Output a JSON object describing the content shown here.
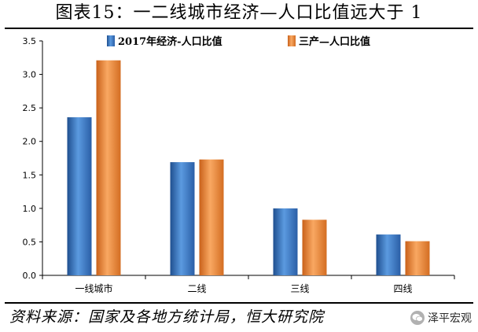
{
  "title": "图表15：一二线城市经济—人口比值远大于 1",
  "source": "资料来源：国家及各地方统计局，恒大研究院",
  "watermark": {
    "icon": "wechat-icon",
    "text": "泽平宏观"
  },
  "colors": {
    "series_1": "#3d7cc9",
    "series_2": "#f08a3c"
  },
  "chart_data": {
    "type": "bar",
    "categories": [
      "一线城市",
      "二线",
      "三线",
      "四线"
    ],
    "series": [
      {
        "name": "2017年经济-人口比值",
        "values": [
          2.36,
          1.69,
          1.0,
          0.61
        ]
      },
      {
        "name": "三产—人口比值",
        "values": [
          3.21,
          1.73,
          0.83,
          0.51
        ]
      }
    ],
    "ylim": [
      0,
      3.5
    ],
    "yticks": [
      "0.0",
      "0.5",
      "1.0",
      "1.5",
      "2.0",
      "2.5",
      "3.0",
      "3.5"
    ],
    "xlabel": "",
    "ylabel": "",
    "grid": false,
    "legend": "top"
  }
}
